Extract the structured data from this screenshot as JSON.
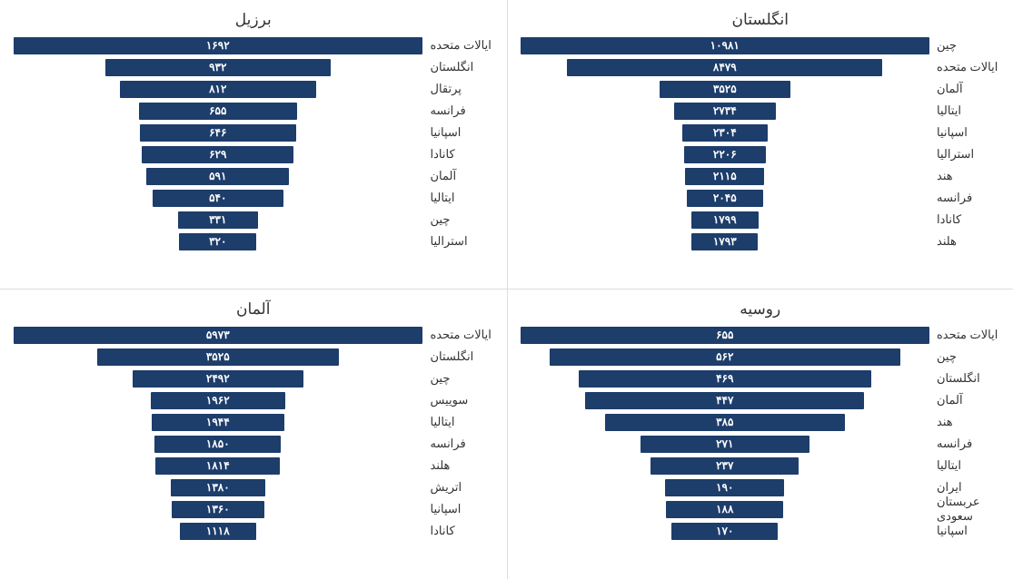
{
  "bar_color": "#1d3d6b",
  "text_color": "#ffffff",
  "panels": [
    {
      "title": "انگلستان",
      "max": 10981,
      "rows": [
        {
          "label": "چین",
          "value": 10981,
          "disp": "۱۰۹۸۱"
        },
        {
          "label": "ایالات متحده",
          "value": 8479,
          "disp": "۸۴۷۹"
        },
        {
          "label": "آلمان",
          "value": 3525,
          "disp": "۳۵۲۵"
        },
        {
          "label": "ایتالیا",
          "value": 2734,
          "disp": "۲۷۳۴"
        },
        {
          "label": "اسپانیا",
          "value": 2304,
          "disp": "۲۳۰۴"
        },
        {
          "label": "استرالیا",
          "value": 2206,
          "disp": "۲۲۰۶"
        },
        {
          "label": "هند",
          "value": 2115,
          "disp": "۲۱۱۵"
        },
        {
          "label": "فرانسه",
          "value": 2045,
          "disp": "۲۰۴۵"
        },
        {
          "label": "کانادا",
          "value": 1799,
          "disp": "۱۷۹۹"
        },
        {
          "label": "هلند",
          "value": 1793,
          "disp": "۱۷۹۳"
        }
      ]
    },
    {
      "title": "برزیل",
      "max": 1692,
      "rows": [
        {
          "label": "ایالات متحده",
          "value": 1692,
          "disp": "۱۶۹۲"
        },
        {
          "label": "انگلستان",
          "value": 932,
          "disp": "۹۳۲"
        },
        {
          "label": "پرتقال",
          "value": 812,
          "disp": "۸۱۲"
        },
        {
          "label": "فرانسه",
          "value": 655,
          "disp": "۶۵۵"
        },
        {
          "label": "اسپانیا",
          "value": 646,
          "disp": "۶۴۶"
        },
        {
          "label": "کانادا",
          "value": 629,
          "disp": "۶۲۹"
        },
        {
          "label": "آلمان",
          "value": 591,
          "disp": "۵۹۱"
        },
        {
          "label": "ایتالیا",
          "value": 540,
          "disp": "۵۴۰"
        },
        {
          "label": "چین",
          "value": 331,
          "disp": "۳۳۱"
        },
        {
          "label": "استرالیا",
          "value": 320,
          "disp": "۳۲۰"
        }
      ]
    },
    {
      "title": "روسیه",
      "max": 655,
      "rows": [
        {
          "label": "ایالات متحده",
          "value": 655,
          "disp": "۶۵۵"
        },
        {
          "label": "چین",
          "value": 562,
          "disp": "۵۶۲"
        },
        {
          "label": "انگلستان",
          "value": 469,
          "disp": "۴۶۹"
        },
        {
          "label": "آلمان",
          "value": 447,
          "disp": "۴۴۷"
        },
        {
          "label": "هند",
          "value": 385,
          "disp": "۳۸۵"
        },
        {
          "label": "فرانسه",
          "value": 271,
          "disp": "۲۷۱"
        },
        {
          "label": "ایتالیا",
          "value": 237,
          "disp": "۲۳۷"
        },
        {
          "label": "ایران",
          "value": 190,
          "disp": "۱۹۰"
        },
        {
          "label": "عربستان سعودی",
          "value": 188,
          "disp": "۱۸۸"
        },
        {
          "label": "اسپانیا",
          "value": 170,
          "disp": "۱۷۰"
        }
      ]
    },
    {
      "title": "آلمان",
      "max": 5973,
      "rows": [
        {
          "label": "ایالات متحده",
          "value": 5973,
          "disp": "۵۹۷۳"
        },
        {
          "label": "انگلستان",
          "value": 3525,
          "disp": "۳۵۲۵"
        },
        {
          "label": "چین",
          "value": 2492,
          "disp": "۲۴۹۲"
        },
        {
          "label": "سوییس",
          "value": 1962,
          "disp": "۱۹۶۲"
        },
        {
          "label": "ایتالیا",
          "value": 1944,
          "disp": "۱۹۴۴"
        },
        {
          "label": "فرانسه",
          "value": 1850,
          "disp": "۱۸۵۰"
        },
        {
          "label": "هلند",
          "value": 1814,
          "disp": "۱۸۱۴"
        },
        {
          "label": "اتریش",
          "value": 1380,
          "disp": "۱۳۸۰"
        },
        {
          "label": "اسپانیا",
          "value": 1360,
          "disp": "۱۳۶۰"
        },
        {
          "label": "کانادا",
          "value": 1118,
          "disp": "۱۱۱۸"
        }
      ]
    }
  ]
}
